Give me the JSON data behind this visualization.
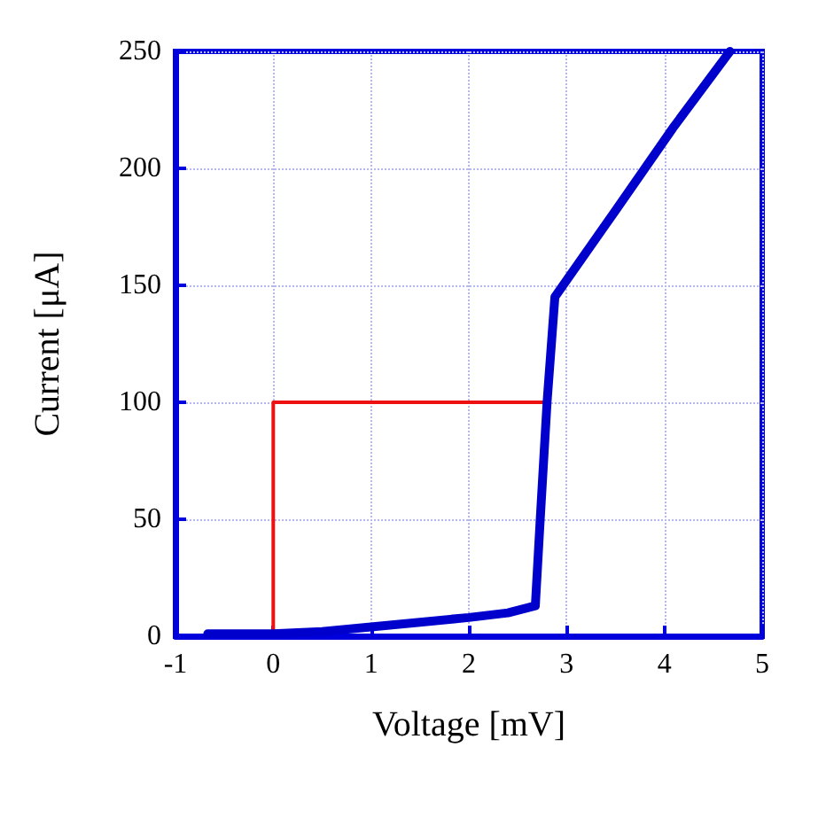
{
  "chart_data": {
    "type": "line",
    "xlabel": "Voltage [mV]",
    "ylabel": "Current [μA]",
    "series": [
      {
        "color": "#ee1111",
        "x": [
          0,
          0,
          2.78
        ],
        "values": [
          0,
          100,
          100
        ]
      },
      {
        "color": "#0000cc",
        "x": [
          -0.67,
          0,
          0.5,
          1,
          1.5,
          2,
          2.4,
          2.68,
          2.73,
          2.8,
          2.88,
          3.5,
          4.1,
          4.67
        ],
        "values": [
          1,
          1,
          2,
          4,
          6,
          8,
          10,
          13,
          50,
          100,
          145,
          182,
          218,
          250
        ]
      }
    ],
    "xlim": [
      -1,
      5
    ],
    "xticks": [
      -1,
      0,
      1,
      2,
      3,
      4,
      5
    ],
    "ylim": [
      0,
      250
    ],
    "yticks": [
      0,
      50,
      100,
      150,
      200,
      250
    ],
    "grid": true,
    "marker": "none",
    "line_style": "solid"
  }
}
